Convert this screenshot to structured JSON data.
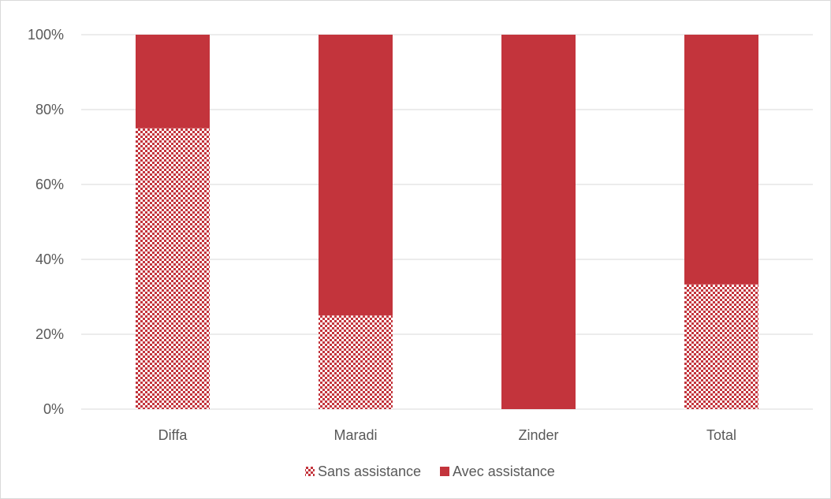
{
  "chart_data": {
    "type": "bar",
    "stacked": true,
    "percent": true,
    "categories": [
      "Diffa",
      "Maradi",
      "Zinder",
      "Total"
    ],
    "series": [
      {
        "name": "Sans assistance",
        "values": [
          75,
          25,
          0,
          33.3
        ],
        "color": "#c3343c",
        "pattern": "checker"
      },
      {
        "name": "Avec assistance",
        "values": [
          25,
          75,
          100,
          66.7
        ],
        "color": "#c3343c",
        "pattern": "solid"
      }
    ],
    "y_ticks": [
      "0%",
      "20%",
      "40%",
      "60%",
      "80%",
      "100%"
    ],
    "ylim": [
      0,
      100
    ],
    "grid": true,
    "legend_position": "bottom",
    "title": "",
    "xlabel": "",
    "ylabel": ""
  }
}
